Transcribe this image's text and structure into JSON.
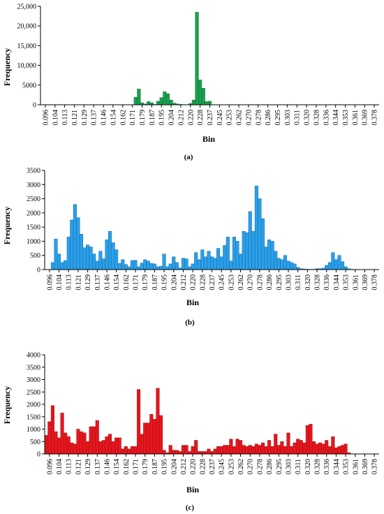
{
  "colors": {
    "panel_a_fill": "#1aa050",
    "panel_a_stroke": "#0d6b30",
    "panel_b_fill": "#2aa0e8",
    "panel_b_stroke": "#1466a8",
    "panel_c_fill": "#e8141e",
    "panel_c_stroke": "#8b1a10",
    "axis": "#000000"
  },
  "shared_x_tick_labels": [
    "0.096",
    "0.104",
    "0.113",
    "0.121",
    "0.129",
    "0.137",
    "0.146",
    "0.154",
    "0.162",
    "0.171",
    "0.179",
    "0.187",
    "0.195",
    "0.204",
    "0.212",
    "0.220",
    "0.228",
    "0.237",
    "0.245",
    "0.253",
    "0.262",
    "0.270",
    "0.278",
    "0.286",
    "0.295",
    "0.303",
    "0.311",
    "0.320",
    "0.328",
    "0.336",
    "0.344",
    "0.353",
    "0.361",
    "0.369",
    "0.378"
  ],
  "chart_data": [
    {
      "type": "bar",
      "panel_label": "(a)",
      "xlabel": "Bin",
      "ylabel": "Frequency",
      "ylim": [
        0,
        25000
      ],
      "y_ticks": [
        "0",
        "5000",
        "10,000",
        "15,000",
        "20,000",
        "25,000"
      ],
      "x_ticks": [
        "0.096",
        "0.104",
        "0.113",
        "0.121",
        "0.129",
        "0.137",
        "0.146",
        "0.154",
        "0.162",
        "0.171",
        "0.179",
        "0.187",
        "0.195",
        "0.204",
        "0.212",
        "0.220",
        "0.228",
        "0.237",
        "0.245",
        "0.253",
        "0.262",
        "0.270",
        "0.278",
        "0.286",
        "0.295",
        "0.303",
        "0.311",
        "0.320",
        "0.328",
        "0.336",
        "0.344",
        "0.353",
        "0.361",
        "0.369",
        "0.378"
      ],
      "bins_per_tick": 3,
      "values": [
        0,
        0,
        0,
        0,
        0,
        0,
        0,
        0,
        0,
        0,
        0,
        0,
        0,
        0,
        0,
        0,
        0,
        0,
        0,
        0,
        0,
        0,
        0,
        0,
        0,
        0,
        0,
        0,
        0,
        1900,
        4000,
        500,
        200,
        800,
        500,
        100,
        900,
        1800,
        3300,
        2800,
        1200,
        400,
        200,
        100,
        50,
        50,
        300,
        1200,
        23500,
        6300,
        4200,
        800,
        900,
        0,
        0,
        0,
        0,
        0,
        0,
        0,
        0,
        0,
        0,
        0,
        0,
        0,
        0,
        0,
        0,
        0,
        0,
        0,
        0,
        0,
        0,
        0,
        0,
        0,
        0,
        0,
        0,
        0,
        0,
        0,
        0,
        0,
        0,
        0,
        0,
        0,
        0,
        0,
        0,
        0,
        0,
        0,
        0,
        0,
        0,
        0,
        0,
        0,
        0
      ]
    },
    {
      "type": "bar",
      "panel_label": "(b)",
      "xlabel": "Bin",
      "ylabel": "Frequency",
      "ylim": [
        0,
        3500
      ],
      "y_ticks": [
        "0",
        "500",
        "1000",
        "1500",
        "2000",
        "2500",
        "3000",
        "3500"
      ],
      "x_ticks": [
        "0.096",
        "0.104",
        "0.113",
        "0.121",
        "0.129",
        "0.137",
        "0.146",
        "0.154",
        "0.162",
        "0.171",
        "0.179",
        "0.187",
        "0.195",
        "0.204",
        "0.212",
        "0.220",
        "0.228",
        "0.237",
        "0.245",
        "0.253",
        "0.262",
        "0.270",
        "0.278",
        "0.286",
        "0.295",
        "0.303",
        "0.311",
        "0.320",
        "0.328",
        "0.336",
        "0.344",
        "0.353",
        "0.361",
        "0.369",
        "0.378"
      ],
      "bins_per_tick": 3,
      "values": [
        0,
        0,
        250,
        1080,
        550,
        250,
        320,
        1150,
        1750,
        2300,
        1830,
        1250,
        770,
        870,
        800,
        550,
        300,
        650,
        380,
        1050,
        1350,
        950,
        700,
        220,
        350,
        180,
        100,
        320,
        330,
        100,
        230,
        350,
        300,
        220,
        200,
        100,
        120,
        550,
        100,
        200,
        450,
        250,
        60,
        400,
        380,
        100,
        200,
        600,
        350,
        700,
        450,
        650,
        450,
        400,
        750,
        450,
        850,
        1150,
        300,
        1150,
        1000,
        550,
        1350,
        1300,
        2050,
        1350,
        2950,
        2500,
        1800,
        800,
        1050,
        1000,
        650,
        400,
        350,
        500,
        300,
        250,
        200,
        80,
        30,
        20,
        10,
        10,
        10,
        30,
        30,
        50,
        150,
        250,
        600,
        350,
        500,
        280,
        100,
        30,
        10,
        0,
        0,
        0,
        0,
        0,
        0,
        0,
        0
      ]
    },
    {
      "type": "bar",
      "panel_label": "(c)",
      "xlabel": "Bin",
      "ylabel": "Frequency",
      "ylim": [
        0,
        4000
      ],
      "y_ticks": [
        "0",
        "500",
        "1000",
        "1500",
        "2000",
        "2500",
        "3000",
        "3500",
        "4000"
      ],
      "x_ticks": [
        "0.096",
        "0.104",
        "0.113",
        "0.121",
        "0.129",
        "0.137",
        "0.146",
        "0.154",
        "0.162",
        "0.171",
        "0.179",
        "0.187",
        "0.195",
        "0.204",
        "0.212",
        "0.220",
        "0.228",
        "0.237",
        "0.245",
        "0.253",
        "0.262",
        "0.270",
        "0.278",
        "0.286",
        "0.295",
        "0.303",
        "0.311",
        "0.320",
        "0.328",
        "0.336",
        "0.344",
        "0.353",
        "0.361",
        "0.369",
        "0.378"
      ],
      "bins_per_tick": 3,
      "values": [
        750,
        1300,
        1950,
        900,
        650,
        1650,
        850,
        700,
        450,
        400,
        1000,
        900,
        850,
        500,
        1100,
        1100,
        1350,
        500,
        550,
        700,
        800,
        500,
        650,
        650,
        200,
        300,
        200,
        300,
        300,
        2600,
        800,
        1250,
        1250,
        1600,
        1400,
        2650,
        1550,
        150,
        50,
        350,
        150,
        150,
        100,
        350,
        350,
        100,
        300,
        550,
        100,
        100,
        100,
        200,
        100,
        200,
        300,
        300,
        350,
        350,
        600,
        300,
        600,
        550,
        350,
        300,
        350,
        300,
        400,
        350,
        450,
        300,
        550,
        300,
        800,
        350,
        500,
        300,
        850,
        300,
        450,
        600,
        550,
        450,
        1150,
        1200,
        500,
        400,
        450,
        400,
        550,
        300,
        700,
        250,
        300,
        350,
        400,
        50,
        0,
        0,
        0,
        0,
        0,
        0,
        0,
        0,
        0
      ]
    }
  ]
}
